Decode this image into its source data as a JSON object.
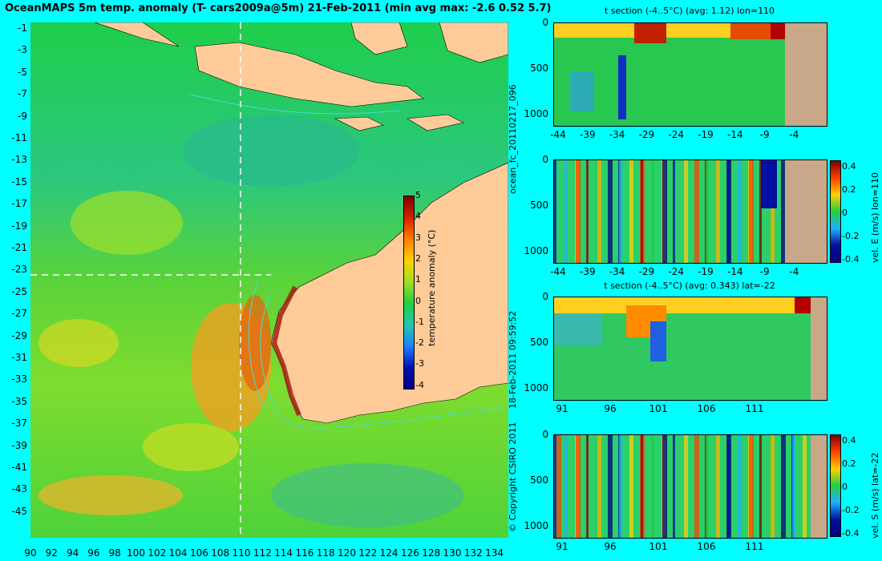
{
  "title": "OceanMAPS 5m temp. anomaly (T- cars2009a@5m) 21-Feb-2011 (min avg max: -2.6 0.52 5.7)",
  "map": {
    "lat_ticks": [
      "-1",
      "-3",
      "-5",
      "-7",
      "-9",
      "-11",
      "-13",
      "-15",
      "-17",
      "-19",
      "-21",
      "-23",
      "-25",
      "-27",
      "-29",
      "-31",
      "-33",
      "-35",
      "-37",
      "-39",
      "-41",
      "-43",
      "-45"
    ],
    "lon_ticks": [
      "90",
      "92",
      "94",
      "96",
      "98",
      "100",
      "102",
      "104",
      "106",
      "108",
      "110",
      "112",
      "114",
      "116",
      "118",
      "120",
      "122",
      "124",
      "126",
      "128",
      "130",
      "132",
      "134"
    ],
    "section_lon": 110,
    "section_lat": -22,
    "colorbar": {
      "label": "temperature anomaly (°C)",
      "ticks": [
        "5",
        "4",
        "3",
        "2",
        "1",
        "0",
        "-1",
        "-2",
        "-3",
        "-4"
      ]
    }
  },
  "side_text": {
    "file": "ocean_fc_20110217_096",
    "timestamp": "18-Feb-2011 09:59:52",
    "copyright": "© Copyright CSIRO 2011"
  },
  "panels": [
    {
      "title": "t section (-4..5°C) (avg: 1.12) lon=110",
      "y_ticks": [
        "0",
        "500",
        "1000"
      ],
      "x_ticks": [
        "-44",
        "-39",
        "-34",
        "-29",
        "-24",
        "-19",
        "-14",
        "-9",
        "-4"
      ],
      "colorbar": null
    },
    {
      "title": "",
      "y_ticks": [
        "0",
        "500",
        "1000"
      ],
      "x_ticks": [
        "-44",
        "-39",
        "-34",
        "-29",
        "-24",
        "-19",
        "-14",
        "-9",
        "-4"
      ],
      "colorbar": {
        "label": "vel. E (m/s) lon=110",
        "ticks": [
          "0.4",
          "0.2",
          "0",
          "-0.2",
          "-0.4"
        ]
      }
    },
    {
      "title": "t section (-4..5°C) (avg: 0.343) lat=-22",
      "y_ticks": [
        "0",
        "500",
        "1000"
      ],
      "x_ticks": [
        "91",
        "96",
        "101",
        "106",
        "111"
      ],
      "colorbar": null
    },
    {
      "title": "",
      "y_ticks": [
        "0",
        "500",
        "1000"
      ],
      "x_ticks": [
        "91",
        "96",
        "101",
        "106",
        "111"
      ],
      "colorbar": {
        "label": "vel. S (m/s) lat=-22",
        "ticks": [
          "0.4",
          "0.2",
          "0",
          "-0.2",
          "-0.4"
        ]
      }
    }
  ]
}
